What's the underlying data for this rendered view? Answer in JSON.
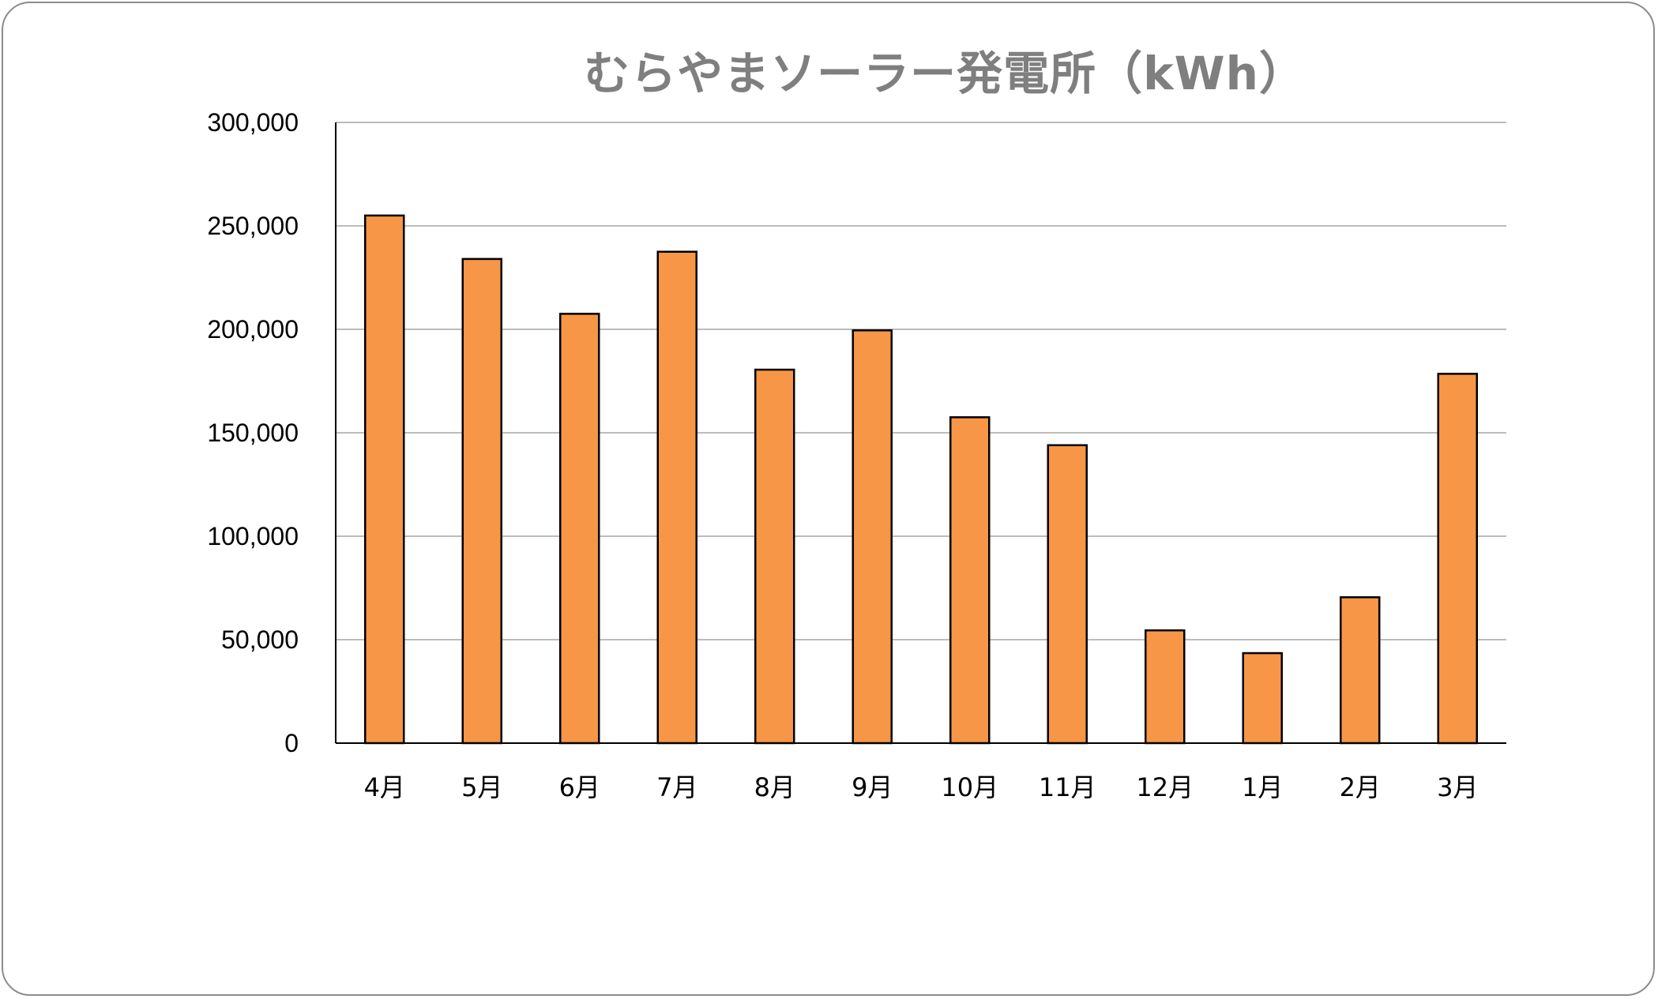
{
  "chart_data": {
    "type": "bar",
    "title": "むらやまソーラー発電所（kWh）",
    "xlabel": "",
    "ylabel": "",
    "categories": [
      "4月",
      "5月",
      "6月",
      "7月",
      "8月",
      "9月",
      "10月",
      "11月",
      "12月",
      "1月",
      "2月",
      "3月"
    ],
    "values": [
      255000,
      234000,
      207500,
      237500,
      180500,
      199500,
      157500,
      144000,
      54500,
      43500,
      70500,
      178500
    ],
    "ylim": [
      0,
      300000
    ],
    "yticks": [
      0,
      50000,
      100000,
      150000,
      200000,
      250000,
      300000
    ],
    "ytick_labels": [
      "0",
      "50,000",
      "100,000",
      "150,000",
      "200,000",
      "250,000",
      "300,000"
    ],
    "grid": true,
    "legend": "none",
    "bar_color": "#f79646",
    "bar_edge_color": "#000000",
    "title_color": "#7f7f7f",
    "gridline_color": "#a6a6a6"
  }
}
